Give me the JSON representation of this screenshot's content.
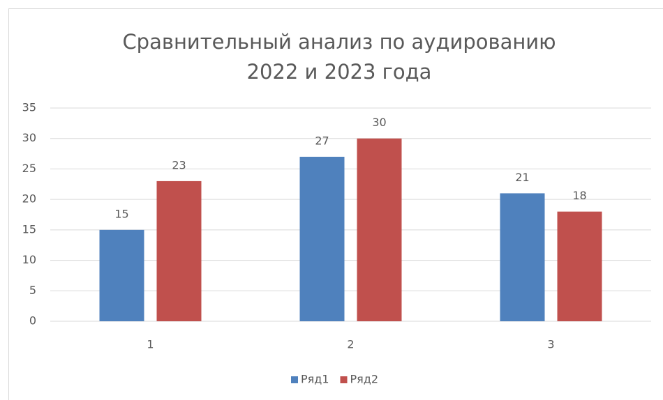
{
  "chart_data": {
    "type": "bar",
    "title": [
      "Сравнительный анализ по аудированию",
      "2022 и 2023 года"
    ],
    "categories": [
      "1",
      "2",
      "3"
    ],
    "series": [
      {
        "name": "Ряд1",
        "color": "#4f81bd",
        "values": [
          15,
          27,
          21
        ]
      },
      {
        "name": "Ряд2",
        "color": "#c0504d",
        "values": [
          23,
          30,
          18
        ]
      }
    ],
    "ylim": [
      0,
      35
    ],
    "yticks": [
      0,
      5,
      10,
      15,
      20,
      25,
      30,
      35
    ],
    "grid": true,
    "legend": "bottom"
  }
}
